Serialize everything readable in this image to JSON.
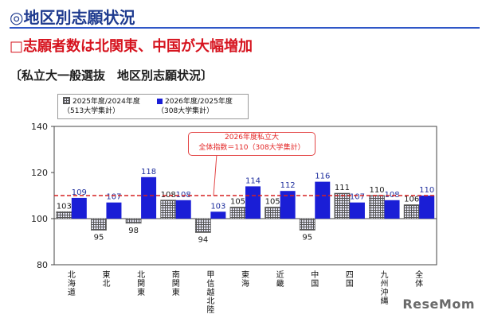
{
  "page": {
    "heading": "◎地区別志願状況",
    "subheading": "□志願者数は北関東、中国が大幅増加",
    "caption": "〔私立大一般選抜　地区別志願状況〕",
    "watermark": "ReseMom"
  },
  "legend": {
    "items": [
      {
        "line1": "2025年度/2024年度",
        "line2": "（513大学集計）",
        "style": "hatch"
      },
      {
        "line1": "2026年度/2025年度",
        "line2": "（308大学集計）",
        "style": "blue"
      }
    ]
  },
  "callout": {
    "line1": "2026年度私立大",
    "line2": "全体指数＝110（308大学集計）"
  },
  "chart_data": {
    "type": "bar",
    "categories": [
      "北海道",
      "東北",
      "北関東",
      "南関東",
      "甲信越・北陸",
      "東海",
      "近畿",
      "中国",
      "四国",
      "九州・沖縄",
      "全体"
    ],
    "series": [
      {
        "name": "2025年度/2024年度（513大学集計）",
        "values": [
          103,
          95,
          98,
          108,
          94,
          105,
          105,
          95,
          111,
          110,
          106
        ]
      },
      {
        "name": "2026年度/2025年度（308大学集計）",
        "values": [
          109,
          107,
          118,
          108,
          103,
          114,
          112,
          116,
          107,
          108,
          110
        ]
      }
    ],
    "baseline": 100,
    "reference_line": 110,
    "ylim": [
      80,
      140
    ],
    "yticks": [
      80,
      100,
      120,
      140
    ],
    "grid": false,
    "legend_position": "top-left",
    "colors": {
      "series1_fill": "#e6e6f5",
      "series1_hatch": "#555555",
      "series2": "#1a1ed6",
      "reference_line": "#d62020",
      "value_label_series1": "#1a1a1a",
      "value_label_series2": "#1f2f9e"
    }
  }
}
